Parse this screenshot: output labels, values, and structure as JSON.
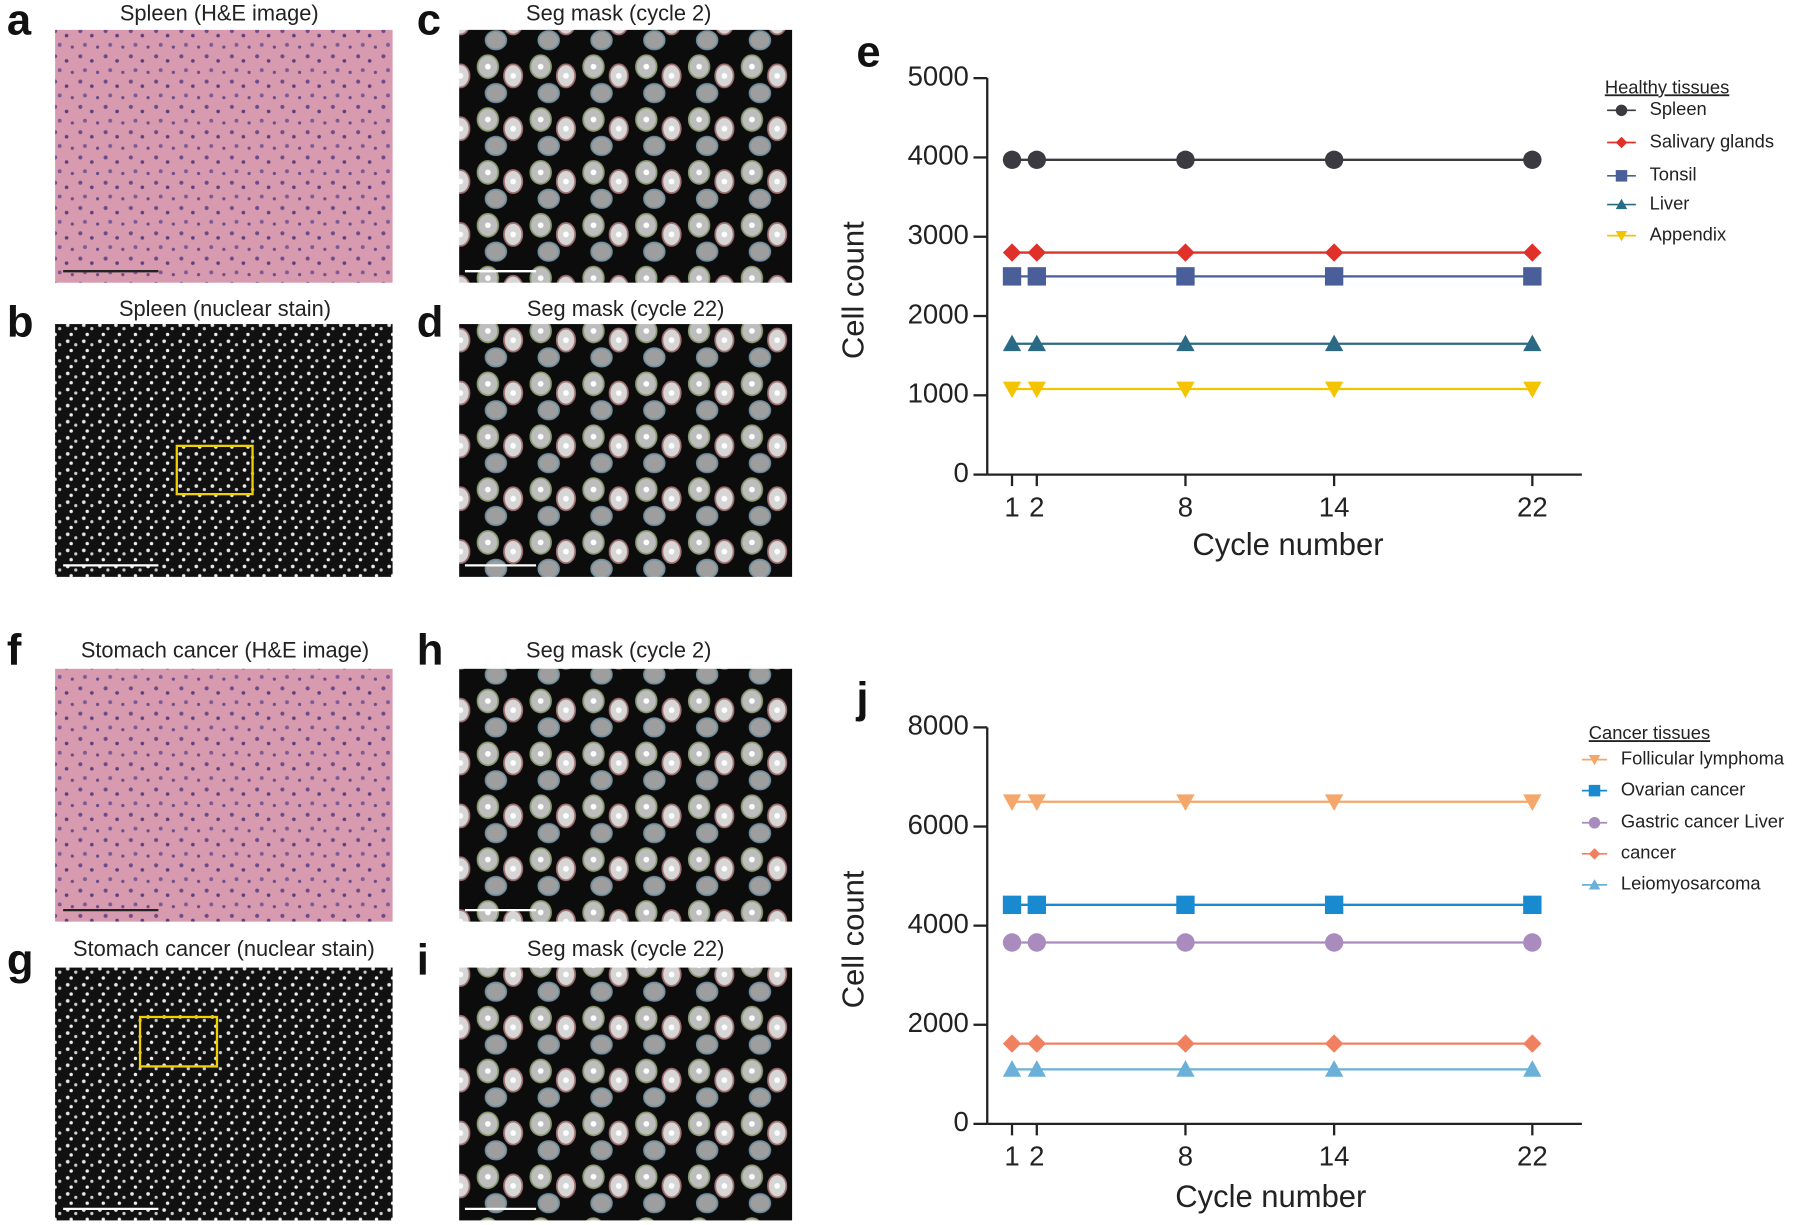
{
  "panels": [
    {
      "label": "a",
      "title": "Spleen (H&E image)"
    },
    {
      "label": "b",
      "title": "Spleen (nuclear stain)"
    },
    {
      "label": "c",
      "title": "Seg mask (cycle 2)"
    },
    {
      "label": "d",
      "title": "Seg mask (cycle 22)"
    },
    {
      "label": "f",
      "title": "Stomach cancer (H&E image)"
    },
    {
      "label": "g",
      "title": "Stomach cancer (nuclear stain)"
    },
    {
      "label": "h",
      "title": "Seg mask (cycle 2)"
    },
    {
      "label": "i",
      "title": "Seg mask (cycle 22)"
    }
  ],
  "chart_data": [
    {
      "type": "line",
      "panel_label": "e",
      "xlabel": "Cycle number",
      "ylabel": "Cell count",
      "legend_title": "Healthy tissues",
      "x": [
        1,
        2,
        8,
        14,
        22
      ],
      "xlim": [
        0,
        24
      ],
      "xticks": [
        1,
        2,
        8,
        14,
        22
      ],
      "ylim": [
        0,
        5000
      ],
      "yticks": [
        0,
        1000,
        2000,
        3000,
        4000,
        5000
      ],
      "series": [
        {
          "name": "Spleen",
          "color": "#3a3a40",
          "marker": "circle",
          "values": [
            3970,
            3970,
            3970,
            3970,
            3970
          ]
        },
        {
          "name": "Salivary glands",
          "color": "#e0302a",
          "marker": "diamond",
          "values": [
            2800,
            2800,
            2800,
            2800,
            2800
          ]
        },
        {
          "name": "Tonsil",
          "color": "#4a5e9a",
          "marker": "square",
          "values": [
            2500,
            2500,
            2500,
            2500,
            2500
          ]
        },
        {
          "name": "Liver",
          "color": "#2a6a85",
          "marker": "triangle-up",
          "values": [
            1650,
            1650,
            1650,
            1650,
            1650
          ]
        },
        {
          "name": "Appendix",
          "color": "#f5c400",
          "marker": "triangle-down",
          "values": [
            1080,
            1080,
            1080,
            1080,
            1080
          ]
        }
      ]
    },
    {
      "type": "line",
      "panel_label": "j",
      "xlabel": "Cycle number",
      "ylabel": "Cell count",
      "legend_title": "Cancer tissues",
      "x": [
        1,
        2,
        8,
        14,
        22
      ],
      "xlim": [
        0,
        24
      ],
      "xticks": [
        1,
        2,
        8,
        14,
        22
      ],
      "ylim": [
        0,
        8000
      ],
      "yticks": [
        0,
        2000,
        4000,
        6000,
        8000
      ],
      "series": [
        {
          "name": "Follicular lymphoma",
          "color": "#f5a66a",
          "marker": "triangle-down",
          "values": [
            6500,
            6500,
            6500,
            6500,
            6500
          ]
        },
        {
          "name": "Ovarian cancer",
          "color": "#1a8ad0",
          "marker": "square",
          "values": [
            4420,
            4420,
            4420,
            4420,
            4420
          ]
        },
        {
          "name": "Gastric cancer  Liver",
          "color": "#a98bbd",
          "marker": "circle",
          "values": [
            3660,
            3660,
            3660,
            3660,
            3660
          ]
        },
        {
          "name": "cancer",
          "color": "#f08060",
          "marker": "diamond",
          "values": [
            1620,
            1620,
            1620,
            1620,
            1620
          ]
        },
        {
          "name": "Leiomyosarcoma",
          "color": "#6ab0d8",
          "marker": "triangle-up",
          "values": [
            1100,
            1100,
            1100,
            1100,
            1100
          ]
        }
      ]
    }
  ]
}
